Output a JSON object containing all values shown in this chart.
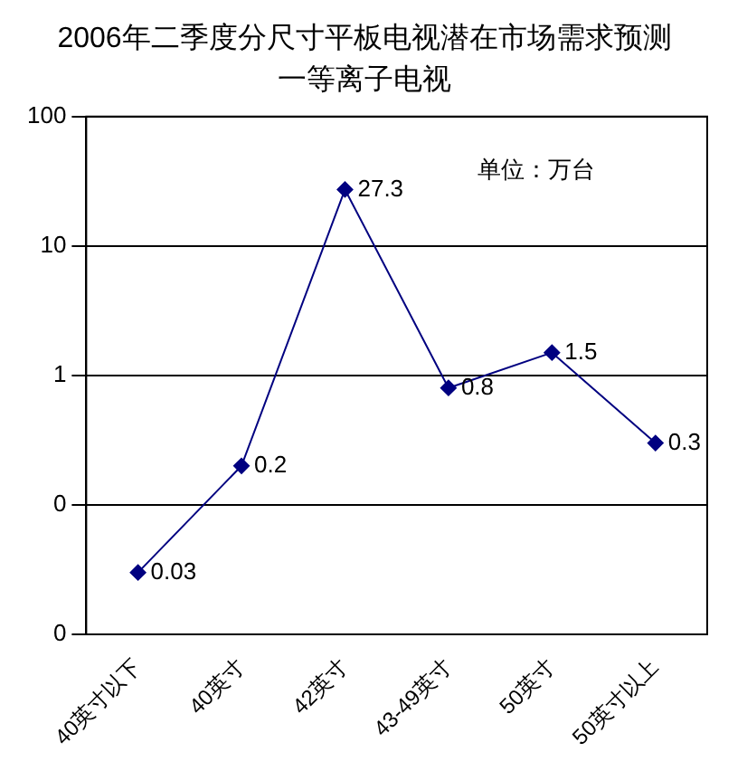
{
  "chart_data": {
    "type": "line",
    "title": "2006年二季度分尺寸平板电视潜在市场需求预测",
    "subtitle": "一等离子电视",
    "categories": [
      "40英寸以下",
      "40英寸",
      "42英寸",
      "43-49英寸",
      "50英寸",
      "50英寸以上"
    ],
    "series": [
      {
        "color": "#000080",
        "values": [
          0.03,
          0.2,
          27.3,
          0.8,
          1.5,
          0.3
        ]
      }
    ],
    "log": true,
    "ylim": [
      0.01,
      100
    ],
    "yticks": [
      {
        "value": 0.01,
        "label": "0"
      },
      {
        "value": 0.1,
        "label": "0"
      },
      1,
      10,
      100
    ],
    "grid": "y",
    "legend": false,
    "marker": "diamond",
    "line_style": "solid",
    "data_labels": true,
    "annotations": [
      "单位：万台"
    ]
  }
}
